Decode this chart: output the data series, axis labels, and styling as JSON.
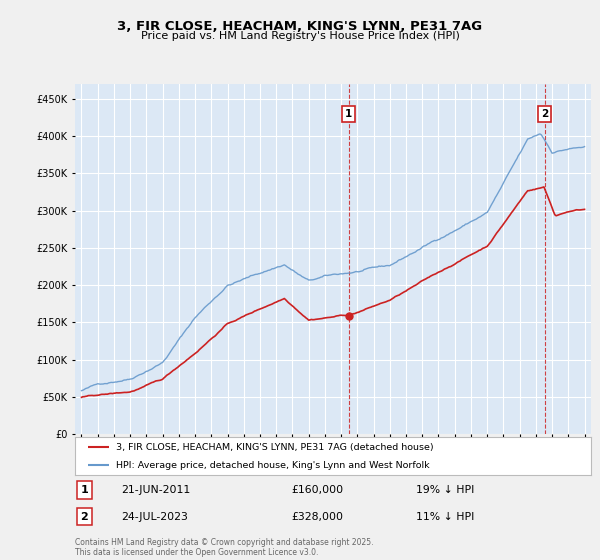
{
  "title": "3, FIR CLOSE, HEACHAM, KING'S LYNN, PE31 7AG",
  "subtitle": "Price paid vs. HM Land Registry's House Price Index (HPI)",
  "bg_color": "#f0f0f0",
  "plot_bg_color": "#dce8f5",
  "grid_color": "#ffffff",
  "hpi_color": "#6699cc",
  "price_color": "#cc2222",
  "marker1_year": 2011.47,
  "marker2_year": 2023.56,
  "marker1_price": 160000,
  "marker2_price": 328000,
  "yticks": [
    0,
    50000,
    100000,
    150000,
    200000,
    250000,
    300000,
    350000,
    400000,
    450000
  ],
  "ylim": [
    0,
    470000
  ],
  "xlim_start": 1994.6,
  "xlim_end": 2026.4,
  "legend_line1": "3, FIR CLOSE, HEACHAM, KING'S LYNN, PE31 7AG (detached house)",
  "legend_line2": "HPI: Average price, detached house, King's Lynn and West Norfolk",
  "table_row1_label": "1",
  "table_row1_date": "21-JUN-2011",
  "table_row1_price": "£160,000",
  "table_row1_pct": "19% ↓ HPI",
  "table_row2_label": "2",
  "table_row2_date": "24-JUL-2023",
  "table_row2_price": "£328,000",
  "table_row2_pct": "11% ↓ HPI",
  "footer": "Contains HM Land Registry data © Crown copyright and database right 2025.\nThis data is licensed under the Open Government Licence v3.0."
}
